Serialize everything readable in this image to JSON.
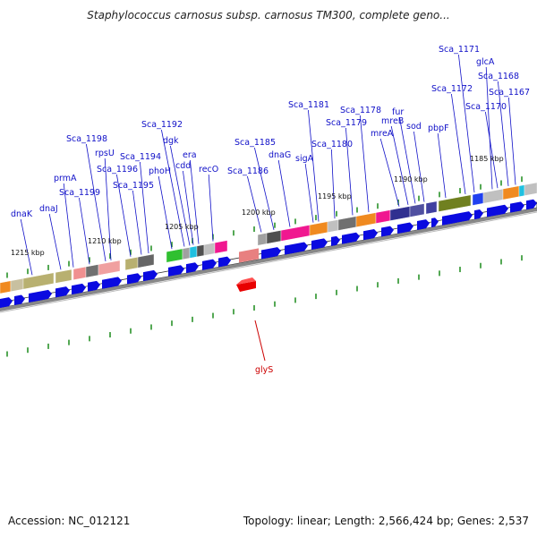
{
  "title": "Staphylococcus carnosus subsp. carnosus TM300, complete geno...",
  "accession_label": "Accession: NC_012121",
  "summary_label": "Topology: linear; Length: 2,566,424 bp; Genes: 2,537",
  "colors": {
    "gene_label": "#1010c8",
    "highlight_label": "#cc0000",
    "tick": "#1a8a1a",
    "arrow": "#0a0ae0",
    "highlight_gene": "#e80000"
  },
  "kbp_ticks": [
    "1215 kbp",
    "1210 kbp",
    "1205 kbp",
    "1200 kbp",
    "1195 kbp",
    "1190 kbp",
    "1185 kbp"
  ],
  "gene_labels": [
    "dnaK",
    "dnaJ",
    "prmA",
    "Sca_1199",
    "Sca_1198",
    "rpsU",
    "Sca_1196",
    "Sca_1195",
    "Sca_1194",
    "phoH",
    "Sca_1192",
    "dgk",
    "cdd",
    "era",
    "recO",
    "Sca_1186",
    "Sca_1185",
    "dnaG",
    "sigA",
    "Sca_1181",
    "Sca_1180",
    "Sca_1179",
    "Sca_1178",
    "mreA",
    "mreB",
    "fur",
    "sod",
    "pbpF",
    "Sca_1172",
    "Sca_1171",
    "glcA",
    "Sca_1170",
    "Sca_1168",
    "Sca_1167"
  ],
  "highlight_gene_label": "glyS"
}
